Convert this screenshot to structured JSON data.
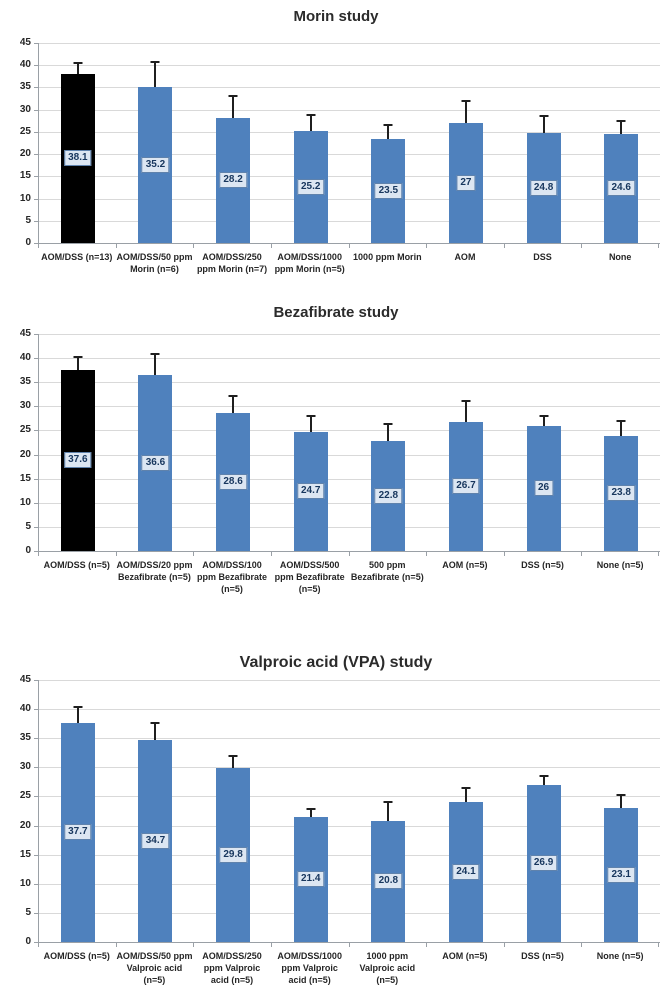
{
  "colors": {
    "bar_blue": "#4f81bd",
    "bar_black": "#000000",
    "value_label_bg": "#dce6f2",
    "value_label_border": "#5f82ac",
    "value_label_text": "#17365d",
    "gridline": "#d9d9d9",
    "axis": "#9aa0a6"
  },
  "chart_data": [
    {
      "type": "bar",
      "title": "Morin study",
      "xlabel": "",
      "ylabel": "",
      "ylim": [
        0,
        45
      ],
      "ytick_step": 5,
      "grid": true,
      "legend": "none",
      "categories": [
        "AOM/DSS (n=13)",
        "AOM/DSS/50 ppm Morin (n=6)",
        "AOM/DSS/250 ppm Morin (n=7)",
        "AOM/DSS/1000 ppm Morin (n=5)",
        "1000 ppm Morin",
        "AOM",
        "DSS",
        "None"
      ],
      "values": [
        38.1,
        35.2,
        28.2,
        25.2,
        23.5,
        27,
        24.8,
        24.6
      ],
      "error_top": [
        40.3,
        40.5,
        32.9,
        28.5,
        26.4,
        31.8,
        28.3,
        27.2
      ],
      "bar_colors": [
        "#000000",
        "#4f81bd",
        "#4f81bd",
        "#4f81bd",
        "#4f81bd",
        "#4f81bd",
        "#4f81bd",
        "#4f81bd"
      ]
    },
    {
      "type": "bar",
      "title": "Bezafibrate study",
      "xlabel": "",
      "ylabel": "",
      "ylim": [
        0,
        45
      ],
      "ytick_step": 5,
      "grid": true,
      "legend": "none",
      "categories": [
        "AOM/DSS (n=5)",
        "AOM/DSS/20 ppm Bezafibrate (n=5)",
        "AOM/DSS/100 ppm Bezafibrate (n=5)",
        "AOM/DSS/500 ppm Bezafibrate (n=5)",
        "500 ppm Bezafibrate (n=5)",
        "AOM (n=5)",
        "DSS (n=5)",
        "None (n=5)"
      ],
      "values": [
        37.6,
        36.6,
        28.6,
        24.7,
        22.8,
        26.7,
        26,
        23.8
      ],
      "error_top": [
        40.0,
        40.7,
        32.0,
        27.8,
        26.2,
        30.9,
        27.8,
        26.7
      ],
      "bar_colors": [
        "#000000",
        "#4f81bd",
        "#4f81bd",
        "#4f81bd",
        "#4f81bd",
        "#4f81bd",
        "#4f81bd",
        "#4f81bd"
      ]
    },
    {
      "type": "bar",
      "title": "Valproic acid (VPA) study",
      "xlabel": "",
      "ylabel": "",
      "ylim": [
        0,
        45
      ],
      "ytick_step": 5,
      "grid": true,
      "legend": "none",
      "categories": [
        "AOM/DSS (n=5)",
        "AOM/DSS/50 ppm Valproic acid (n=5)",
        "AOM/DSS/250 ppm Valproic acid (n=5)",
        "AOM/DSS/1000 ppm Valproic acid (n=5)",
        "1000 ppm Valproic acid (n=5)",
        "AOM (n=5)",
        "DSS (n=5)",
        "None (n=5)"
      ],
      "values": [
        37.7,
        34.7,
        29.8,
        21.4,
        20.8,
        24.1,
        26.9,
        23.1
      ],
      "error_top": [
        40.2,
        37.5,
        31.8,
        22.7,
        23.9,
        26.2,
        28.4,
        25.0
      ],
      "bar_colors": [
        "#4f81bd",
        "#4f81bd",
        "#4f81bd",
        "#4f81bd",
        "#4f81bd",
        "#4f81bd",
        "#4f81bd",
        "#4f81bd"
      ]
    }
  ]
}
